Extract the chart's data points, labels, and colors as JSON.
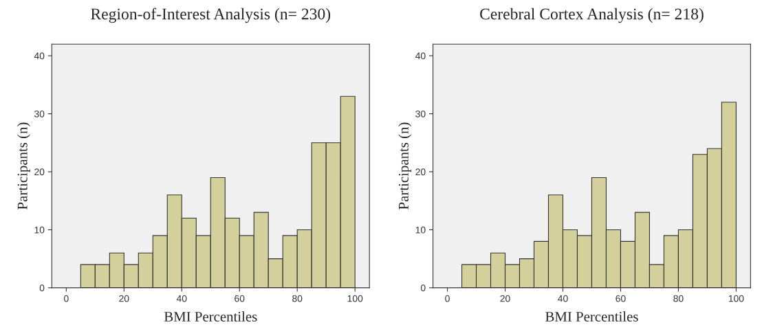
{
  "chart_data": [
    {
      "type": "histogram",
      "title": "Region-of-Interest Analysis (n= 230)",
      "xlabel": "BMI Percentiles",
      "ylabel": "Participants (n)",
      "color": "#d4d09c",
      "bins": [
        5,
        10,
        15,
        20,
        25,
        30,
        35,
        40,
        45,
        50,
        55,
        60,
        65,
        70,
        75,
        80,
        85,
        90,
        95,
        100
      ],
      "values": [
        4,
        4,
        6,
        4,
        6,
        9,
        16,
        12,
        9,
        19,
        12,
        9,
        13,
        5,
        9,
        10,
        25,
        25,
        33
      ],
      "xlim": [
        -5,
        105
      ],
      "xticks": [
        0,
        20,
        40,
        60,
        80,
        100
      ],
      "ylim": [
        0,
        42
      ],
      "yticks": [
        0,
        10,
        20,
        30,
        40
      ]
    },
    {
      "type": "histogram",
      "title": "Cerebral Cortex Analysis (n= 218)",
      "xlabel": "BMI Percentiles",
      "ylabel": "Participants (n)",
      "color": "#d4d09c",
      "bins": [
        5,
        10,
        15,
        20,
        25,
        30,
        35,
        40,
        45,
        50,
        55,
        60,
        65,
        70,
        75,
        80,
        85,
        90,
        95,
        100
      ],
      "values": [
        4,
        4,
        6,
        4,
        5,
        8,
        16,
        10,
        9,
        19,
        10,
        8,
        13,
        4,
        9,
        10,
        23,
        24,
        32
      ],
      "xlim": [
        -5,
        105
      ],
      "xticks": [
        0,
        20,
        40,
        60,
        80,
        100
      ],
      "ylim": [
        0,
        42
      ],
      "yticks": [
        0,
        10,
        20,
        30,
        40
      ]
    }
  ]
}
